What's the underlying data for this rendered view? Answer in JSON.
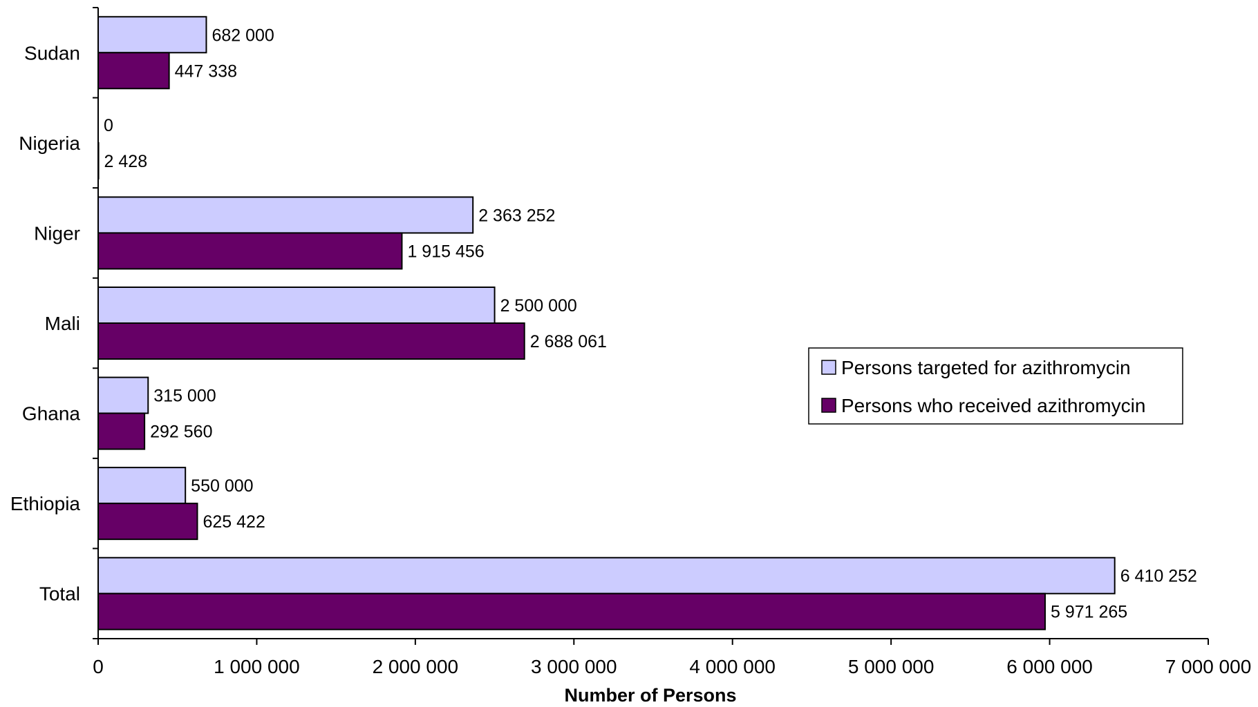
{
  "chart_data": {
    "type": "bar",
    "orientation": "horizontal",
    "categories": [
      "Sudan",
      "Nigeria",
      "Niger",
      "Mali",
      "Ghana",
      "Ethiopia",
      "Total"
    ],
    "series": [
      {
        "name": "Persons targeted for azithromycin",
        "color": "#ccccff",
        "values": [
          682000,
          0,
          2363252,
          2500000,
          315000,
          550000,
          6410252
        ],
        "labels": [
          "682 000",
          "0",
          "2 363 252",
          "2 500 000",
          "315 000",
          "550 000",
          "6 410 252"
        ]
      },
      {
        "name": "Persons who received azithromycin",
        "color": "#660066",
        "values": [
          447338,
          2428,
          1915456,
          2688061,
          292560,
          625422,
          5971265
        ],
        "labels": [
          "447 338",
          "2 428",
          "1 915 456",
          "2 688 061",
          "292 560",
          "625 422",
          "5 971 265"
        ]
      }
    ],
    "xlim": [
      0,
      7000000
    ],
    "xticks": [
      0,
      1000000,
      2000000,
      3000000,
      4000000,
      5000000,
      6000000,
      7000000
    ],
    "xtick_labels": [
      "0",
      "1 000 000",
      "2 000 000",
      "3 000 000",
      "4 000 000",
      "5 000 000",
      "6 000 000",
      "7 000 000"
    ],
    "xlabel": "Number of Persons",
    "ylabel": "",
    "title": "",
    "grid": false,
    "legend_position": "right"
  }
}
